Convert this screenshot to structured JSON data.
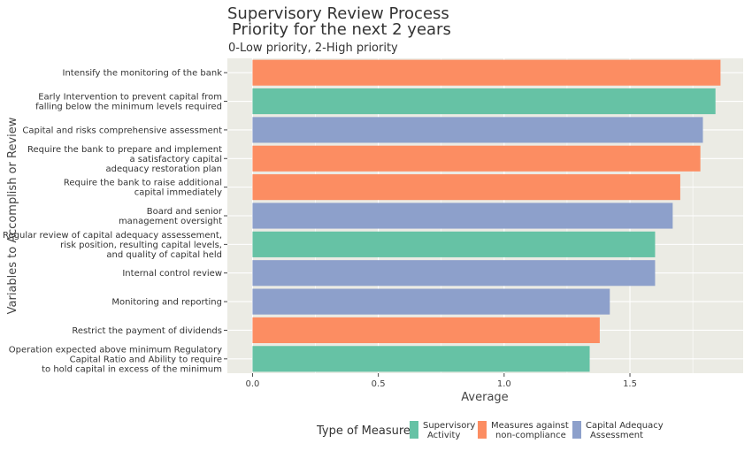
{
  "chart_data": {
    "type": "bar",
    "orientation": "horizontal",
    "title": "Supervisory Review Process",
    "title_line2": "Priority for the next 2 years",
    "subtitle": "0-Low priority, 2-High priority",
    "xlabel": "Average",
    "ylabel": "Variables to Accomplish or Review",
    "xlim": [
      -0.1,
      1.95
    ],
    "xticks": [
      0.0,
      0.5,
      1.0,
      1.5
    ],
    "xtick_labels": [
      "0.0",
      "0.5",
      "1.0",
      "1.5"
    ],
    "grid": true,
    "legend_position": "bottom",
    "legend_title": "Type of Measure",
    "legend": [
      {
        "key": "supervisory",
        "line1": "Supervisory",
        "line2": "Activity",
        "color": "#66c2a5"
      },
      {
        "key": "measures",
        "line1": "Measures against",
        "line2": "non-compliance",
        "color": "#fc8d62"
      },
      {
        "key": "capital",
        "line1": "Capital Adequacy",
        "line2": "Assessment",
        "color": "#8da0cb"
      }
    ],
    "bars": [
      {
        "label": [
          "Intensify the monitoring of the bank"
        ],
        "value": 1.86,
        "type": "measures"
      },
      {
        "label": [
          "Early Intervention to prevent capital from",
          "falling below the minimum levels required"
        ],
        "value": 1.84,
        "type": "supervisory"
      },
      {
        "label": [
          "Capital and risks comprehensive assessment"
        ],
        "value": 1.79,
        "type": "capital"
      },
      {
        "label": [
          "Require the bank to prepare and implement",
          "a satisfactory capital",
          "adequacy restoration plan"
        ],
        "value": 1.78,
        "type": "measures"
      },
      {
        "label": [
          "Require the bank to raise additional",
          "capital immediately"
        ],
        "value": 1.7,
        "type": "measures"
      },
      {
        "label": [
          "Board and senior",
          "management oversight"
        ],
        "value": 1.67,
        "type": "capital"
      },
      {
        "label": [
          "Regular review of capital adequacy assessement,",
          "risk position, resulting capital levels,",
          "and quality of capital held"
        ],
        "value": 1.6,
        "type": "supervisory"
      },
      {
        "label": [
          "Internal control review"
        ],
        "value": 1.6,
        "type": "capital"
      },
      {
        "label": [
          "Monitoring and reporting"
        ],
        "value": 1.42,
        "type": "capital"
      },
      {
        "label": [
          "Restrict the payment of dividends"
        ],
        "value": 1.38,
        "type": "measures"
      },
      {
        "label": [
          "Operation expected above minimum Regulatory",
          "Capital Ratio and Ability to require",
          "to hold capital in excess of the minimum"
        ],
        "value": 1.34,
        "type": "supervisory"
      }
    ],
    "colors": {
      "panel_background": "#ebebe4",
      "grid": "#ffffff"
    }
  }
}
